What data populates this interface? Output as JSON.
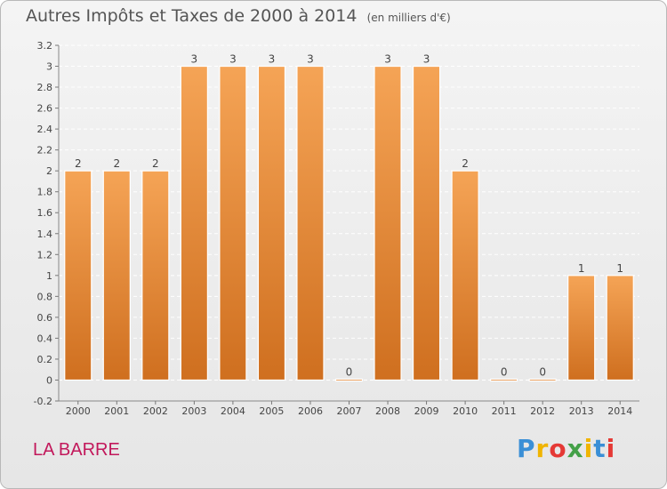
{
  "title": "Autres Impôts et Taxes de 2000 à 2014",
  "subtitle": "(en milliers d'€)",
  "place_name": "LA BARRE",
  "logo_text": "Proxiti",
  "colors": {
    "bar_light": "#f5a456",
    "bar_dark": "#cf6f1f",
    "title": "#555555",
    "place": "#c2185b",
    "logo": [
      "#3a8fd6",
      "#f0b400",
      "#e53935",
      "#43a047",
      "#f0b400",
      "#3a8fd6",
      "#e53935"
    ]
  },
  "chart_data": {
    "type": "bar",
    "title": "Autres Impôts et Taxes de 2000 à 2014",
    "subtitle": "(en milliers d'€)",
    "categories": [
      "2000",
      "2001",
      "2002",
      "2003",
      "2004",
      "2005",
      "2006",
      "2007",
      "2008",
      "2009",
      "2010",
      "2011",
      "2012",
      "2013",
      "2014"
    ],
    "values": [
      2,
      2,
      2,
      3,
      3,
      3,
      3,
      0,
      3,
      3,
      2,
      0,
      0,
      1,
      1
    ],
    "data_labels": [
      "2",
      "2",
      "2",
      "3",
      "3",
      "3",
      "3",
      "0",
      "3",
      "3",
      "2",
      "0",
      "0",
      "1",
      "1"
    ],
    "yticks": [
      "3.2",
      "3",
      "2.8",
      "2.6",
      "2.4",
      "2.2",
      "2",
      "1.8",
      "1.6",
      "1.4",
      "1.2",
      "1",
      "0.8",
      "0.6",
      "0.4",
      "0.2",
      "0",
      "-0.2"
    ],
    "ylim": [
      -0.2,
      3.2
    ],
    "grid": true
  }
}
